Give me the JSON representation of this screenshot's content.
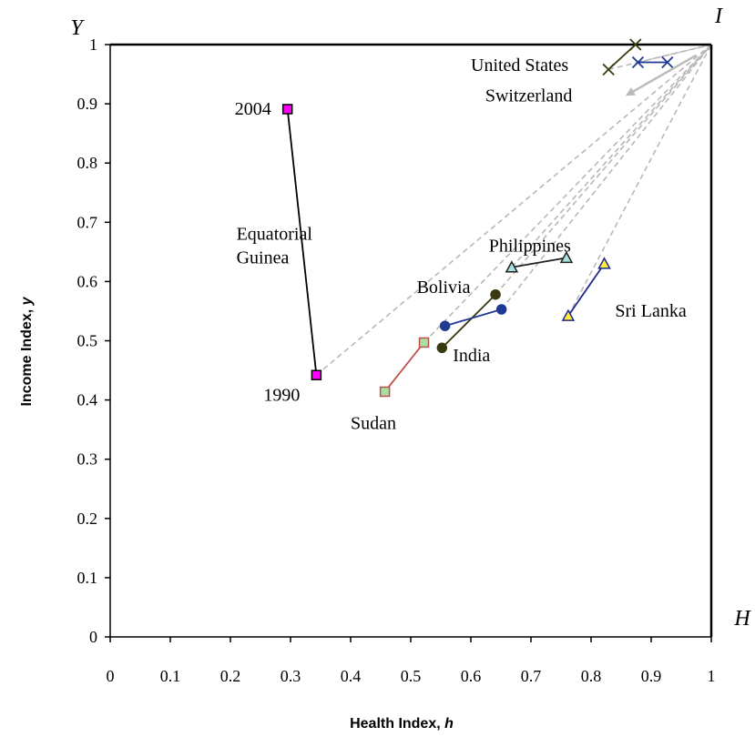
{
  "chart_data": {
    "type": "scatter",
    "title": "",
    "xlabel": "Health Index, ",
    "xlabel_var": "h",
    "ylabel": "Income Index, ",
    "ylabel_var": "y",
    "xlim": [
      0,
      1
    ],
    "ylim": [
      0,
      1
    ],
    "x_ticks": [
      "0",
      "0.1",
      "0.2",
      "0.3",
      "0.4",
      "0.5",
      "0.6",
      "0.7",
      "0.8",
      "0.9",
      "1"
    ],
    "y_ticks": [
      "0",
      "0.1",
      "0.2",
      "0.3",
      "0.4",
      "0.5",
      "0.6",
      "0.7",
      "0.8",
      "0.9",
      "1"
    ],
    "grid": false,
    "corner_labels": {
      "y_axis": "Y",
      "x_axis": "H",
      "ideal": "I"
    },
    "ideal_point": [
      1,
      1
    ],
    "series": [
      {
        "name": "Equatorial Guinea",
        "color": "#000000",
        "marker": "square",
        "marker_fill": "#ff00ff",
        "marker_stroke": "#000000",
        "points": [
          [
            0.343,
            0.442
          ],
          [
            0.295,
            0.891
          ]
        ]
      },
      {
        "name": "Sudan",
        "color": "#c0504d",
        "marker": "square",
        "marker_fill": "#a8e0a0",
        "marker_stroke": "#c0504d",
        "points": [
          [
            0.457,
            0.414
          ],
          [
            0.522,
            0.497
          ]
        ]
      },
      {
        "name": "India",
        "color": "#3a3a10",
        "marker": "circle",
        "marker_fill": "#3a3a10",
        "marker_stroke": "#3a3a10",
        "points": [
          [
            0.552,
            0.488
          ],
          [
            0.641,
            0.578
          ]
        ]
      },
      {
        "name": "Bolivia",
        "color": "#1f3a93",
        "marker": "circle",
        "marker_fill": "#1f3a93",
        "marker_stroke": "#1f3a93",
        "points": [
          [
            0.557,
            0.525
          ],
          [
            0.651,
            0.553
          ]
        ]
      },
      {
        "name": "Philippines",
        "color": "#222222",
        "marker": "triangle",
        "marker_fill": "#a8e0e0",
        "marker_stroke": "#222222",
        "points": [
          [
            0.668,
            0.624
          ],
          [
            0.759,
            0.64
          ]
        ]
      },
      {
        "name": "Sri Lanka",
        "color": "#1f2a8a",
        "marker": "triangle",
        "marker_fill": "#ffeb3b",
        "marker_stroke": "#1f2a8a",
        "points": [
          [
            0.762,
            0.542
          ],
          [
            0.822,
            0.63
          ]
        ]
      },
      {
        "name": "United States",
        "color": "#3a3a10",
        "marker": "x",
        "marker_fill": "none",
        "marker_stroke": "#3a3a10",
        "points": [
          [
            0.829,
            0.958
          ],
          [
            0.874,
            1.0
          ]
        ]
      },
      {
        "name": "Switzerland",
        "color": "#1f3a93",
        "marker": "x",
        "marker_fill": "none",
        "marker_stroke": "#1f3a93",
        "points": [
          [
            0.878,
            0.97
          ],
          [
            0.927,
            0.97
          ]
        ]
      }
    ],
    "dashed_lines_to_ideal_from": [
      [
        0.343,
        0.442
      ],
      [
        0.522,
        0.497
      ],
      [
        0.641,
        0.578
      ],
      [
        0.651,
        0.553
      ],
      [
        0.668,
        0.624
      ],
      [
        0.762,
        0.542
      ],
      [
        0.829,
        0.958
      ],
      [
        0.878,
        0.97
      ]
    ],
    "annotations": [
      {
        "text": "2004",
        "x": 0.295,
        "y": 0.891,
        "anchor": "end"
      },
      {
        "text": "1990",
        "x": 0.343,
        "y": 0.442,
        "anchor": "end"
      },
      {
        "text": "Equatorial",
        "x": 0.21,
        "y": 0.68,
        "anchor": "start"
      },
      {
        "text": "Guinea",
        "x": 0.21,
        "y": 0.64,
        "anchor": "start"
      },
      {
        "text": "Sudan",
        "x": 0.4,
        "y": 0.36,
        "anchor": "start"
      },
      {
        "text": "India",
        "x": 0.57,
        "y": 0.475,
        "anchor": "start"
      },
      {
        "text": "Bolivia",
        "x": 0.51,
        "y": 0.59,
        "anchor": "start"
      },
      {
        "text": "Philippines",
        "x": 0.63,
        "y": 0.66,
        "anchor": "start"
      },
      {
        "text": "Sri Lanka",
        "x": 0.84,
        "y": 0.55,
        "anchor": "start"
      },
      {
        "text": "United States",
        "x": 0.6,
        "y": 0.965,
        "anchor": "start"
      },
      {
        "text": "Switzerland",
        "x": 0.624,
        "y": 0.913,
        "anchor": "start"
      }
    ],
    "arrow": {
      "from": [
        0.975,
        0.982
      ],
      "to": [
        0.86,
        0.915
      ]
    }
  }
}
